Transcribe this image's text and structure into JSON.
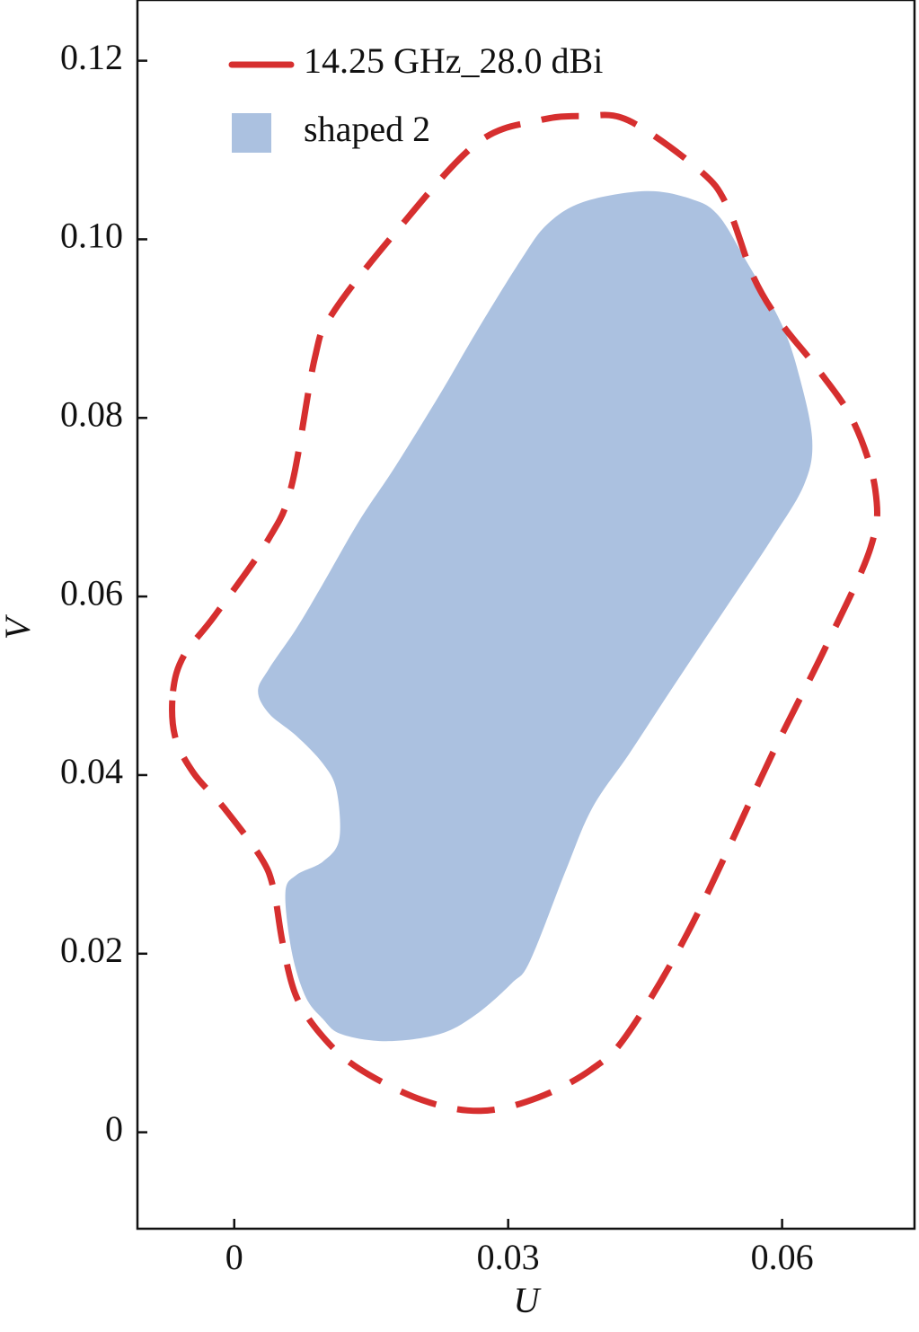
{
  "chart_data": {
    "type": "contour",
    "xlabel": "U",
    "ylabel": "V",
    "xlim": [
      -0.0106,
      0.0745
    ],
    "ylim": [
      -0.0108,
      0.1268
    ],
    "xticks": [
      0,
      0.03,
      0.06
    ],
    "yticks": [
      0,
      0.02,
      0.04,
      0.06,
      0.08,
      {
        "value": 0.1,
        "label": "0.10"
      },
      0.12
    ],
    "legend": "upper left",
    "series": [
      {
        "name": "14.25 GHz_28.0 dBi",
        "color": "#d62f2f",
        "style": "dashed",
        "x": [
          -0.0067,
          -0.0055,
          -0.0021,
          0.0038,
          0.0063,
          0.0088,
          0.0107,
          0.0176,
          0.0265,
          0.0333,
          0.0383,
          0.0432,
          0.051,
          0.054,
          0.0569,
          0.0599,
          0.0638,
          0.0678,
          0.0702,
          0.0697,
          0.0648,
          0.0589,
          0.0501,
          0.0432,
          0.0392,
          0.0333,
          0.027,
          0.0206,
          0.0137,
          0.0097,
          0.0068,
          0.0053,
          0.0043,
          0.0029,
          -0.0011,
          -0.0045,
          -0.0065
        ],
        "y": [
          0.0494,
          0.0534,
          0.0579,
          0.0665,
          0.0725,
          0.0866,
          0.0916,
          0.1007,
          0.1107,
          0.1133,
          0.1138,
          0.1133,
          0.1077,
          0.1037,
          0.0957,
          0.0906,
          0.0856,
          0.0796,
          0.072,
          0.0655,
          0.0544,
          0.0423,
          0.0232,
          0.0112,
          0.0071,
          0.0039,
          0.0024,
          0.0036,
          0.0071,
          0.0107,
          0.0152,
          0.0212,
          0.0273,
          0.0308,
          0.0363,
          0.0403,
          0.0444
        ]
      },
      {
        "name": "shaped 2",
        "color": "#abc1e0",
        "style": "filled",
        "x": [
          0.0026,
          0.0038,
          0.0068,
          0.0097,
          0.0137,
          0.0176,
          0.0225,
          0.0265,
          0.0314,
          0.0343,
          0.0383,
          0.0451,
          0.0501,
          0.053,
          0.056,
          0.0599,
          0.0619,
          0.0633,
          0.0624,
          0.0589,
          0.055,
          0.051,
          0.0471,
          0.0432,
          0.0392,
          0.0363,
          0.0324,
          0.0304,
          0.0265,
          0.0225,
          0.0166,
          0.0117,
          0.0097,
          0.0078,
          0.0063,
          0.0056,
          0.0068,
          0.0097,
          0.0115,
          0.0112,
          0.0097,
          0.0068,
          0.0038
        ],
        "y": [
          0.0494,
          0.0519,
          0.0564,
          0.0614,
          0.0685,
          0.0745,
          0.0826,
          0.0896,
          0.0977,
          0.1017,
          0.1042,
          0.1054,
          0.1045,
          0.1027,
          0.0977,
          0.0906,
          0.0846,
          0.0775,
          0.0725,
          0.0665,
          0.0605,
          0.0544,
          0.0484,
          0.0423,
          0.0363,
          0.0293,
          0.0192,
          0.0167,
          0.0132,
          0.011,
          0.0102,
          0.011,
          0.0127,
          0.0152,
          0.0202,
          0.0268,
          0.0288,
          0.0303,
          0.0328,
          0.0383,
          0.0413,
          0.0444,
          0.0469
        ]
      }
    ]
  }
}
